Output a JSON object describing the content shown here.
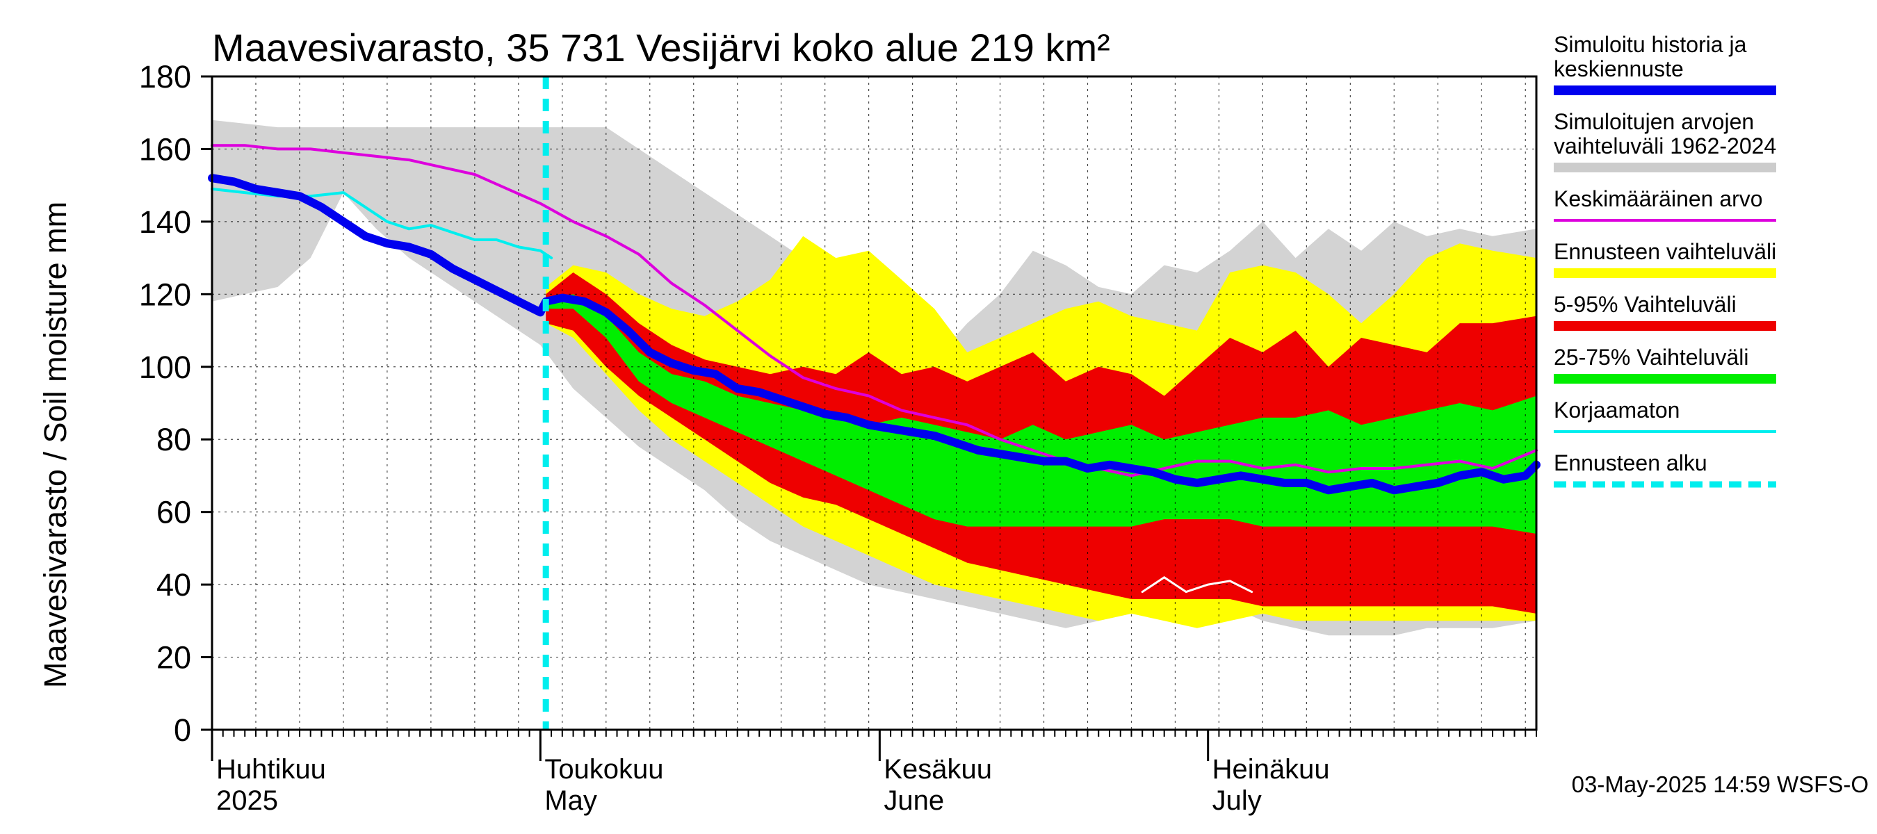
{
  "chart_data": {
    "type": "area",
    "title": "Maavesivarasto, 35 731 Vesijärvi koko alue 219 km²",
    "ylabel": "Maavesivarasto / Soil moisture   mm",
    "ylim": [
      0,
      180
    ],
    "yticks": [
      0,
      20,
      40,
      60,
      80,
      100,
      120,
      140,
      160,
      180
    ],
    "x_start_day": 0,
    "x_end_day": 121,
    "forecast_start_day": 30.5,
    "month_labels": [
      {
        "day": 0,
        "fi": "Huhtikuu",
        "en": "2025"
      },
      {
        "day": 30,
        "fi": "Toukokuu",
        "en": "May"
      },
      {
        "day": 61,
        "fi": "Kesäkuu",
        "en": "June"
      },
      {
        "day": 91,
        "fi": "Heinäkuu",
        "en": "July"
      }
    ],
    "timestamp": "03-May-2025 14:59 WSFS-O",
    "legend": [
      {
        "label1": "Simuloitu historia ja",
        "label2": "keskiennuste",
        "color": "#0000ee",
        "style": "thick"
      },
      {
        "label1": "Simuloitujen arvojen",
        "label2": "vaihteluväli 1962-2024",
        "color": "#cccccc",
        "style": "thick"
      },
      {
        "label1": "Keskimääräinen arvo",
        "label2": "",
        "color": "#dd00dd",
        "style": "thin"
      },
      {
        "label1": "Ennusteen vaihteluväli",
        "label2": "",
        "color": "#ffff00",
        "style": "thick"
      },
      {
        "label1": "5-95% Vaihteluväli",
        "label2": "",
        "color": "#ee0000",
        "style": "thick"
      },
      {
        "label1": "25-75% Vaihteluväli",
        "label2": "",
        "color": "#00ee00",
        "style": "thick"
      },
      {
        "label1": "Korjaamaton",
        "label2": "",
        "color": "#00eeee",
        "style": "thin"
      },
      {
        "label1": "Ennusteen alku",
        "label2": "",
        "color": "#00eeee",
        "style": "dashed"
      }
    ],
    "series": {
      "hist_range": {
        "days": [
          0,
          3,
          6,
          9,
          12,
          15,
          18,
          21,
          24,
          27,
          30,
          33,
          36,
          39,
          42,
          45,
          48,
          51,
          54,
          57,
          60,
          63,
          66,
          69,
          72,
          75,
          78,
          81,
          84,
          87,
          90,
          93,
          96,
          99,
          102,
          105,
          108,
          111,
          114,
          117,
          121
        ],
        "upper": [
          168,
          167,
          166,
          166,
          166,
          166,
          166,
          166,
          166,
          166,
          166,
          166,
          166,
          160,
          154,
          148,
          142,
          136,
          130,
          124,
          118,
          110,
          102,
          112,
          120,
          132,
          128,
          122,
          120,
          128,
          126,
          132,
          140,
          130,
          138,
          132,
          140,
          136,
          138,
          136,
          138
        ],
        "lower": [
          118,
          120,
          122,
          130,
          148,
          138,
          130,
          124,
          118,
          112,
          106,
          94,
          86,
          78,
          72,
          66,
          58,
          52,
          48,
          44,
          40,
          38,
          36,
          34,
          32,
          30,
          28,
          30,
          32,
          36,
          38,
          34,
          30,
          28,
          26,
          26,
          26,
          28,
          28,
          28,
          30
        ]
      },
      "yellow": {
        "days": [
          30.5,
          33,
          36,
          39,
          42,
          45,
          48,
          51,
          54,
          57,
          60,
          63,
          66,
          69,
          72,
          75,
          78,
          81,
          84,
          87,
          90,
          93,
          96,
          99,
          102,
          105,
          108,
          111,
          114,
          117,
          121
        ],
        "upper": [
          122,
          128,
          126,
          120,
          116,
          114,
          118,
          124,
          136,
          130,
          132,
          124,
          116,
          104,
          108,
          112,
          116,
          118,
          114,
          112,
          110,
          126,
          128,
          126,
          120,
          112,
          120,
          130,
          134,
          132,
          130
        ],
        "lower": [
          112,
          108,
          98,
          88,
          80,
          74,
          68,
          62,
          56,
          52,
          48,
          44,
          40,
          38,
          36,
          34,
          32,
          30,
          32,
          30,
          28,
          30,
          32,
          30,
          30,
          30,
          30,
          30,
          30,
          30,
          30
        ]
      },
      "red": {
        "days": [
          30.5,
          33,
          36,
          39,
          42,
          45,
          48,
          51,
          54,
          57,
          60,
          63,
          66,
          69,
          72,
          75,
          78,
          81,
          84,
          87,
          90,
          93,
          96,
          99,
          102,
          105,
          108,
          111,
          114,
          117,
          121
        ],
        "upper": [
          120,
          126,
          120,
          112,
          106,
          102,
          100,
          98,
          100,
          98,
          104,
          98,
          100,
          96,
          100,
          104,
          96,
          100,
          98,
          92,
          100,
          108,
          104,
          110,
          100,
          108,
          106,
          104,
          112,
          112,
          114
        ],
        "lower": [
          112,
          110,
          100,
          92,
          86,
          80,
          74,
          68,
          64,
          62,
          58,
          54,
          50,
          46,
          44,
          42,
          40,
          38,
          36,
          36,
          36,
          36,
          34,
          34,
          34,
          34,
          34,
          34,
          34,
          34,
          32
        ]
      },
      "green": {
        "days": [
          30.5,
          33,
          36,
          39,
          42,
          45,
          48,
          51,
          54,
          57,
          60,
          63,
          66,
          69,
          72,
          75,
          78,
          81,
          84,
          87,
          90,
          93,
          96,
          99,
          102,
          105,
          108,
          111,
          114,
          117,
          121
        ],
        "upper": [
          118,
          120,
          114,
          104,
          98,
          96,
          92,
          90,
          88,
          86,
          84,
          86,
          84,
          82,
          80,
          84,
          80,
          82,
          84,
          80,
          82,
          84,
          86,
          86,
          88,
          84,
          86,
          88,
          90,
          88,
          92
        ],
        "lower": [
          116,
          116,
          108,
          96,
          90,
          86,
          82,
          78,
          74,
          70,
          66,
          62,
          58,
          56,
          56,
          56,
          56,
          56,
          56,
          58,
          58,
          58,
          56,
          56,
          56,
          56,
          56,
          56,
          56,
          56,
          54
        ]
      },
      "median": {
        "days": [
          0,
          2,
          4,
          6,
          8,
          10,
          12,
          14,
          16,
          18,
          20,
          22,
          24,
          26,
          28,
          30,
          30.5,
          32,
          34,
          36,
          38,
          40,
          42,
          44,
          46,
          48,
          50,
          52,
          54,
          56,
          58,
          60,
          62,
          64,
          66,
          68,
          70,
          72,
          74,
          76,
          78,
          80,
          82,
          84,
          86,
          88,
          90,
          92,
          94,
          96,
          98,
          100,
          102,
          104,
          106,
          108,
          110,
          112,
          114,
          116,
          118,
          120,
          121
        ],
        "values": [
          152,
          151,
          149,
          148,
          147,
          144,
          140,
          136,
          134,
          133,
          131,
          127,
          124,
          121,
          118,
          115,
          118,
          119,
          118,
          115,
          110,
          104,
          101,
          99,
          98,
          94,
          93,
          91,
          89,
          87,
          86,
          84,
          83,
          82,
          81,
          79,
          77,
          76,
          75,
          74,
          74,
          72,
          73,
          72,
          71,
          69,
          68,
          69,
          70,
          69,
          68,
          68,
          66,
          67,
          68,
          66,
          67,
          68,
          70,
          71,
          69,
          70,
          73
        ]
      },
      "mean": {
        "days": [
          0,
          3,
          6,
          9,
          12,
          15,
          18,
          21,
          24,
          27,
          30,
          33,
          36,
          39,
          42,
          45,
          48,
          51,
          54,
          57,
          60,
          63,
          66,
          69,
          72,
          75,
          78,
          81,
          84,
          87,
          90,
          93,
          96,
          99,
          102,
          105,
          108,
          111,
          114,
          117,
          121
        ],
        "values": [
          161,
          161,
          160,
          160,
          159,
          158,
          157,
          155,
          153,
          149,
          145,
          140,
          136,
          131,
          123,
          117,
          110,
          103,
          97,
          94,
          92,
          88,
          86,
          84,
          80,
          77,
          74,
          72,
          70,
          72,
          74,
          74,
          72,
          73,
          71,
          72,
          72,
          73,
          74,
          72,
          77
        ]
      },
      "uncorrected": {
        "days": [
          0,
          3,
          6,
          9,
          12,
          14,
          16,
          18,
          20,
          22,
          24,
          26,
          28,
          30,
          31
        ],
        "values": [
          149,
          148,
          147,
          147,
          148,
          144,
          140,
          138,
          139,
          137,
          135,
          135,
          133,
          132,
          130
        ]
      },
      "white_line": {
        "days": [
          85,
          87,
          89,
          91,
          93,
          95
        ],
        "values": [
          38,
          42,
          38,
          40,
          41,
          38
        ]
      }
    }
  }
}
